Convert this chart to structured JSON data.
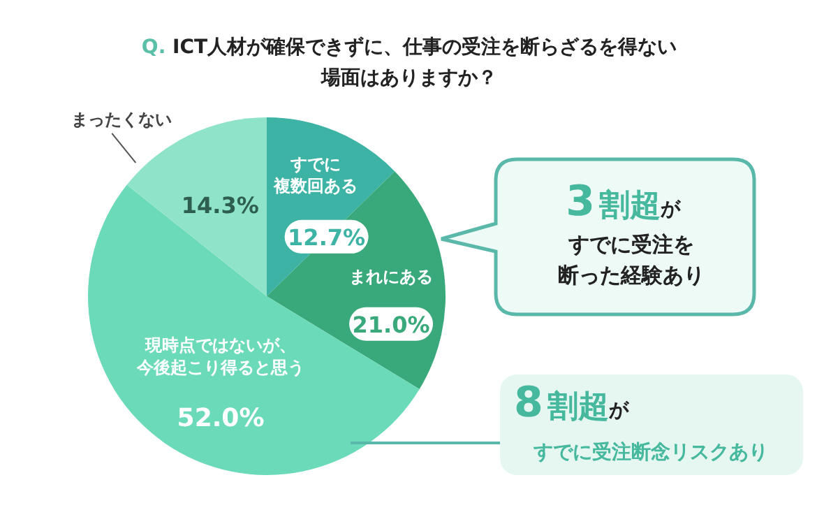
{
  "chart_data": {
    "type": "pie",
    "title": "Q. ICT人材が確保できずに、仕事の受注を断らざるを得ない場面はありますか？",
    "categories": [
      "すでに複数回ある",
      "まれにある",
      "現時点ではないが、今後起こり得ると思う",
      "まったくない"
    ],
    "values": [
      12.7,
      21.0,
      52.0,
      14.3
    ],
    "colors": [
      "#3cb3a4",
      "#39a97c",
      "#6bdab9",
      "#8fe3c9"
    ],
    "value_labels": [
      "12.7%",
      "21.0%",
      "52.0%",
      "14.3%"
    ],
    "annotations": [
      "3割超がすでに受注を断った経験あり",
      "8割超がすでに受注断念リスクあり"
    ]
  }
}
